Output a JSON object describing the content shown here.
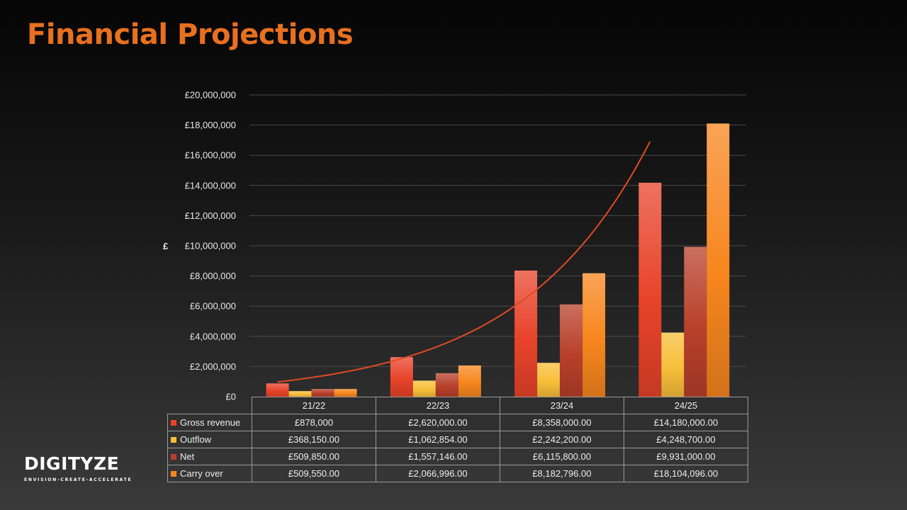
{
  "title": "Financial Projections",
  "y_axis_label": "£",
  "logo": {
    "name": "DIGITYZE",
    "tagline": "ENVISION-CREATE-ACCELERATE"
  },
  "colors": {
    "gross_revenue": "#e8432a",
    "outflow": "#f7bf3a",
    "net": "#b8402a",
    "carry_over": "#f7861e",
    "trendline": "#e04a26",
    "title": "#e8701f"
  },
  "chart_data": {
    "type": "bar",
    "categories": [
      "21/22",
      "22/23",
      "23/24",
      "24/25"
    ],
    "series": [
      {
        "name": "Gross revenue",
        "values": [
          878000,
          2620000,
          8358000,
          14180000
        ],
        "labels": [
          "£878,000",
          "£2,620,000.00",
          "£8,358,000.00",
          "£14,180,000.00"
        ]
      },
      {
        "name": "Outflow",
        "values": [
          368150,
          1062854,
          2242200,
          4248700
        ],
        "labels": [
          "£368,150.00",
          "£1,062,854.00",
          "£2,242,200.00",
          "£4,248,700.00"
        ]
      },
      {
        "name": "Net",
        "values": [
          509850,
          1557146,
          6115800,
          9931000
        ],
        "labels": [
          "£509,850.00",
          "£1,557,146.00",
          "£6,115,800.00",
          "£9,931,000.00"
        ]
      },
      {
        "name": "Carry over",
        "values": [
          509550,
          2066996,
          8182796,
          18104096
        ],
        "labels": [
          "£509,550.00",
          "£2,066,996.00",
          "£8,182,796.00",
          "£18,104,096.00"
        ]
      }
    ],
    "trendline": {
      "type": "exponential",
      "series": "Gross revenue"
    },
    "ylim": [
      0,
      20000000
    ],
    "yticks": [
      0,
      2000000,
      4000000,
      6000000,
      8000000,
      10000000,
      12000000,
      14000000,
      16000000,
      18000000,
      20000000
    ],
    "ytick_labels": [
      "£0",
      "£2,000,000",
      "£4,000,000",
      "£6,000,000",
      "£8,000,000",
      "£10,000,000",
      "£12,000,000",
      "£14,000,000",
      "£16,000,000",
      "£18,000,000",
      "£20,000,000"
    ],
    "grid": true,
    "legend": "data table"
  }
}
